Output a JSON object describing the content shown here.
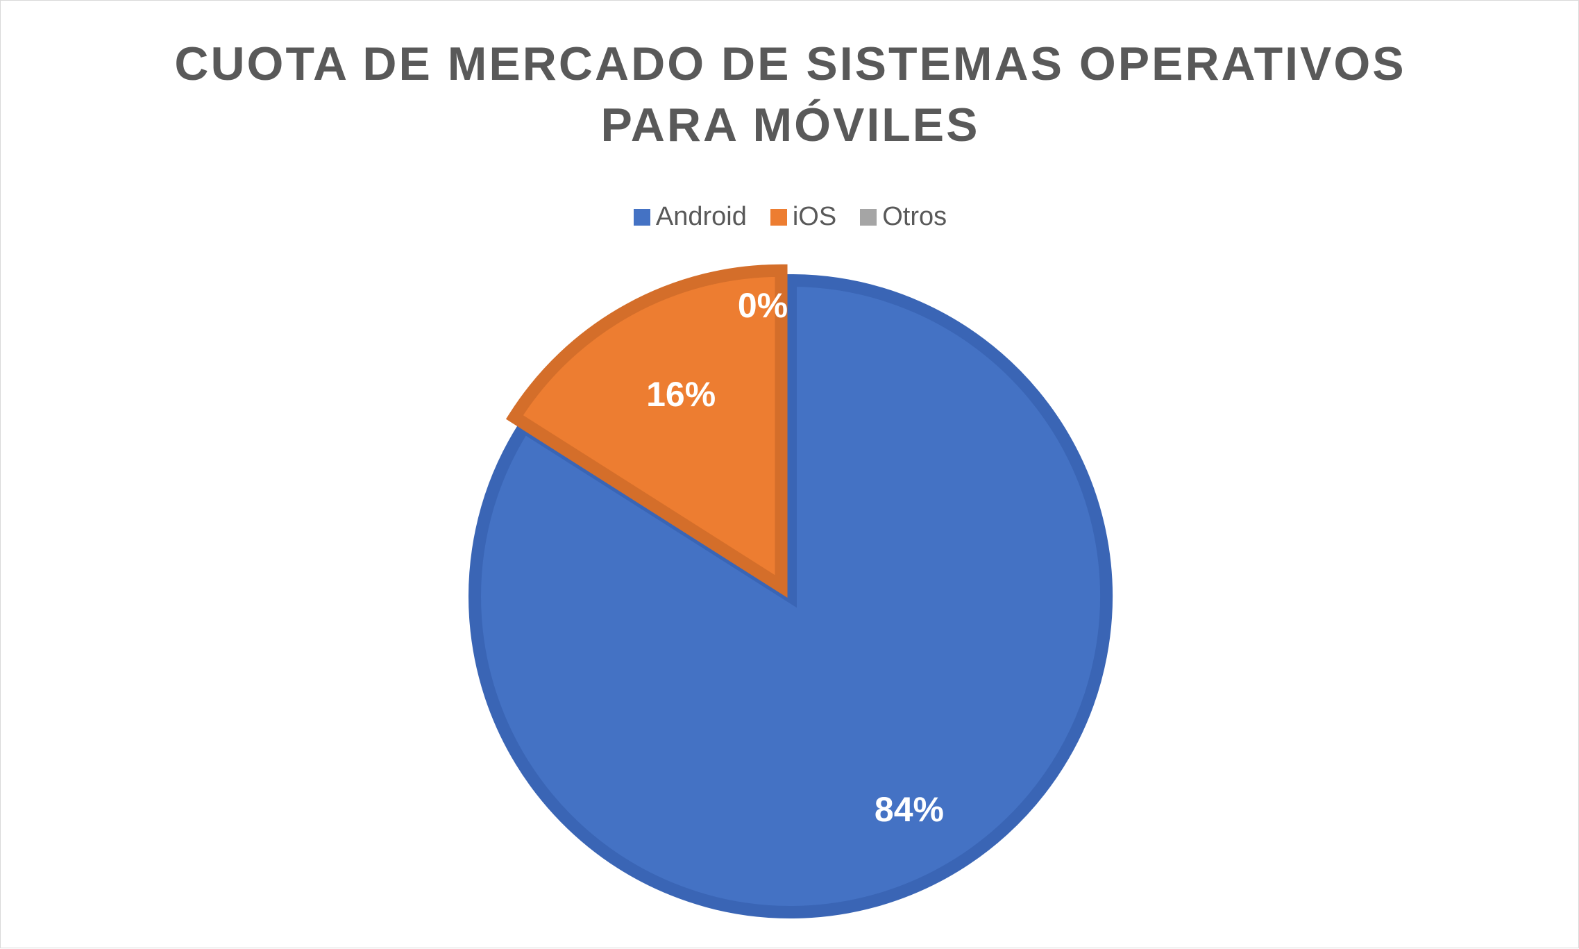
{
  "chart_data": {
    "type": "pie",
    "title_lines": [
      "CUOTA DE MERCADO DE SISTEMAS OPERATIVOS",
      "PARA MÓVILES"
    ],
    "categories": [
      "Android",
      "iOS",
      "Otros"
    ],
    "values": [
      84,
      16,
      0
    ],
    "data_labels": [
      "84%",
      "16%",
      "0%"
    ],
    "colors": [
      "#4472c4",
      "#ed7d31",
      "#a5a5a5"
    ],
    "legend_position": "top",
    "start_angle_deg": 0,
    "direction": "clockwise"
  }
}
